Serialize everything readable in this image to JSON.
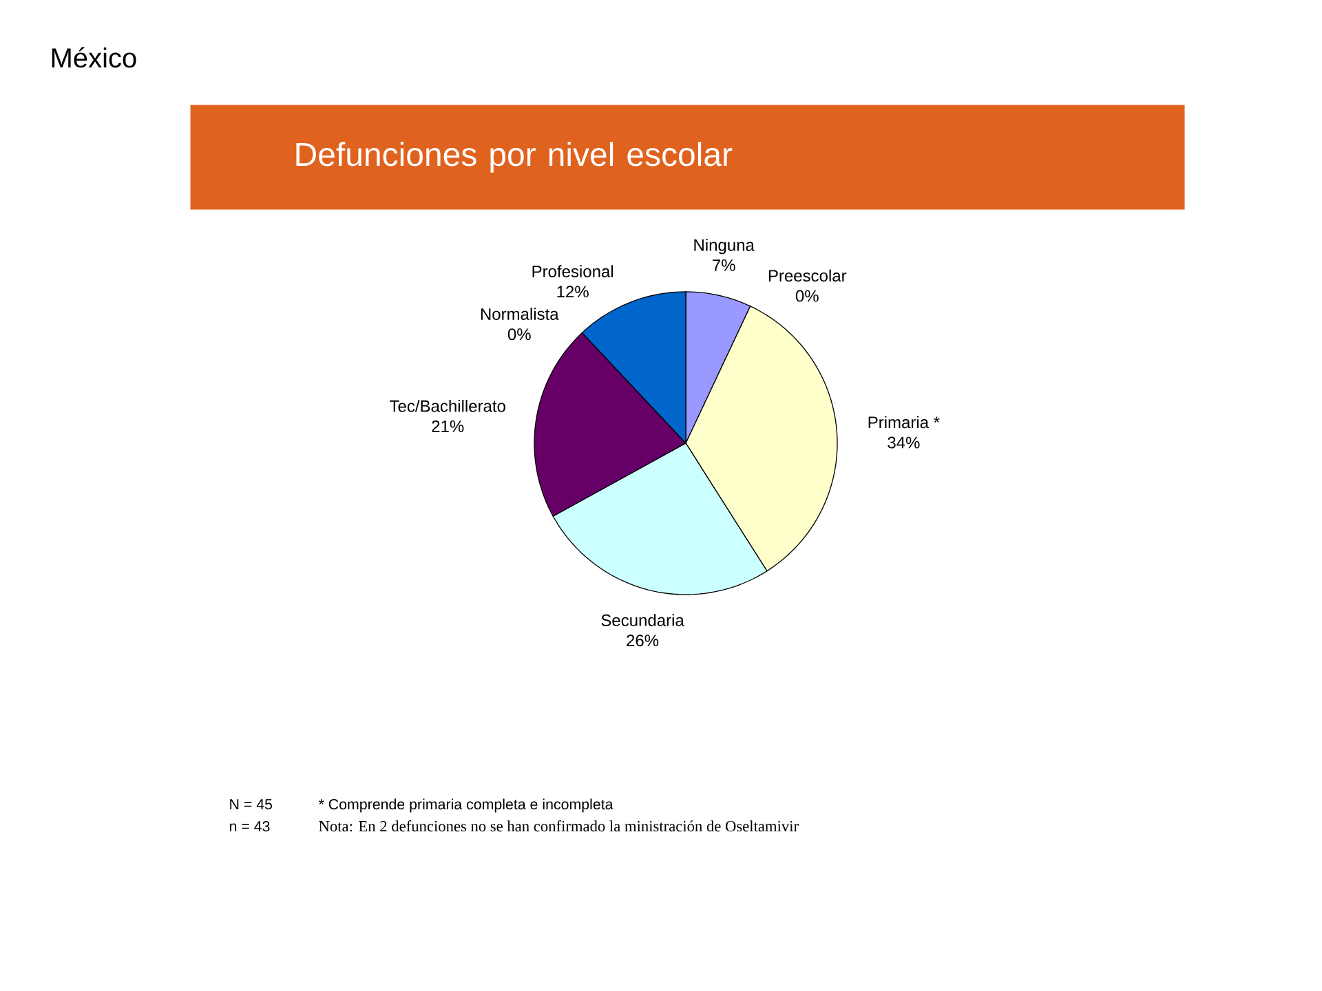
{
  "chart_data": {
    "type": "pie",
    "title": "Defunciones por nivel escolar",
    "subtitle": "México",
    "categories": [
      "Ninguna",
      "Preescolar",
      "Primaria *",
      "Secundaria",
      "Tec/Bachillerato",
      "Normalista",
      "Profesional"
    ],
    "values": [
      7,
      0,
      34,
      26,
      21,
      0,
      12
    ],
    "value_labels": [
      "7%",
      "0%",
      "34%",
      "26%",
      "21%",
      "0%",
      "12%"
    ],
    "colors": [
      "#9999ff",
      "#993366",
      "#ffffcc",
      "#ccffff",
      "#660066",
      "#ff8080",
      "#0066cc"
    ],
    "annotations": [
      "N = 45",
      "* Comprende primaria completa e incompleta",
      "n = 43",
      "Nota: En 2 defunciones no se han confirmado la ministración de Oseltamivir"
    ]
  }
}
